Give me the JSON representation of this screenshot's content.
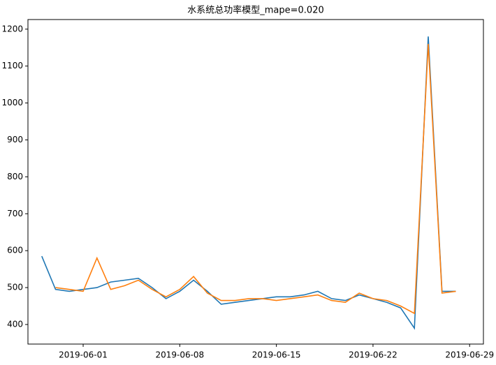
{
  "chart_data": {
    "type": "line",
    "title": "水系统总功率模型_mape=0.020",
    "x": [
      "2019-05-29",
      "2019-05-30",
      "2019-05-31",
      "2019-06-01",
      "2019-06-02",
      "2019-06-03",
      "2019-06-04",
      "2019-06-05",
      "2019-06-06",
      "2019-06-07",
      "2019-06-08",
      "2019-06-09",
      "2019-06-10",
      "2019-06-11",
      "2019-06-12",
      "2019-06-13",
      "2019-06-14",
      "2019-06-15",
      "2019-06-16",
      "2019-06-17",
      "2019-06-18",
      "2019-06-19",
      "2019-06-20",
      "2019-06-21",
      "2019-06-22",
      "2019-06-23",
      "2019-06-24",
      "2019-06-25",
      "2019-06-26",
      "2019-06-27",
      "2019-06-28"
    ],
    "series": [
      {
        "color": "#1f77b4",
        "values": [
          585,
          495,
          490,
          495,
          500,
          515,
          520,
          525,
          500,
          470,
          490,
          520,
          490,
          455,
          460,
          465,
          470,
          475,
          475,
          480,
          490,
          470,
          465,
          480,
          470,
          460,
          445,
          390,
          1180,
          490,
          490
        ]
      },
      {
        "color": "#ff7f0e",
        "values": [
          null,
          500,
          495,
          490,
          580,
          495,
          505,
          520,
          495,
          475,
          495,
          530,
          485,
          465,
          465,
          470,
          470,
          465,
          470,
          475,
          480,
          465,
          460,
          485,
          470,
          465,
          450,
          430,
          1160,
          485,
          490
        ]
      }
    ],
    "xlim": [
      "2019-05-28",
      "2019-06-30"
    ],
    "xticks": [
      "2019-06-01",
      "2019-06-08",
      "2019-06-15",
      "2019-06-22",
      "2019-06-29"
    ],
    "ylim": [
      347,
      1226
    ],
    "yticks": [
      400,
      500,
      600,
      700,
      800,
      900,
      1000,
      1100,
      1200
    ]
  }
}
